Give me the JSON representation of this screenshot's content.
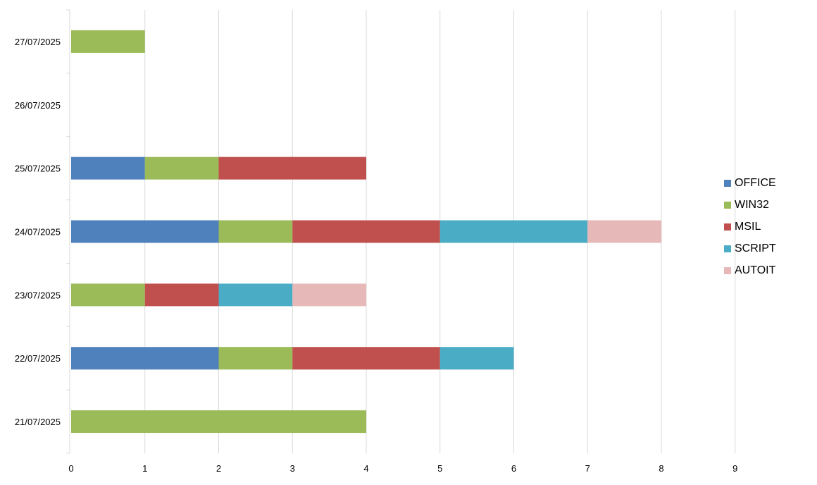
{
  "chart_data": {
    "type": "bar",
    "orientation": "horizontal",
    "stacked": true,
    "title": "",
    "xlabel": "",
    "ylabel": "",
    "xlim": [
      0,
      9
    ],
    "x_ticks": [
      "0",
      "1",
      "2",
      "3",
      "4",
      "5",
      "6",
      "7",
      "8",
      "9"
    ],
    "grid": "vertical",
    "legend_position": "right",
    "categories": [
      "21/07/2025",
      "22/07/2025",
      "23/07/2025",
      "24/07/2025",
      "25/07/2025",
      "26/07/2025",
      "27/07/2025"
    ],
    "series": [
      {
        "name": "OFFICE",
        "color": "#4F81BD",
        "values": [
          0,
          2,
          0,
          2,
          1,
          0,
          0
        ]
      },
      {
        "name": "WIN32",
        "color": "#9BBB59",
        "values": [
          4,
          1,
          1,
          1,
          1,
          0,
          1
        ]
      },
      {
        "name": "MSIL",
        "color": "#C0504D",
        "values": [
          0,
          2,
          1,
          2,
          2,
          0,
          0
        ]
      },
      {
        "name": "SCRIPT",
        "color": "#4BACC6",
        "values": [
          0,
          1,
          1,
          2,
          0,
          0,
          0
        ]
      },
      {
        "name": "AUTOIT",
        "color": "#E6B9B8",
        "values": [
          0,
          0,
          1,
          1,
          0,
          0,
          0
        ]
      }
    ]
  }
}
